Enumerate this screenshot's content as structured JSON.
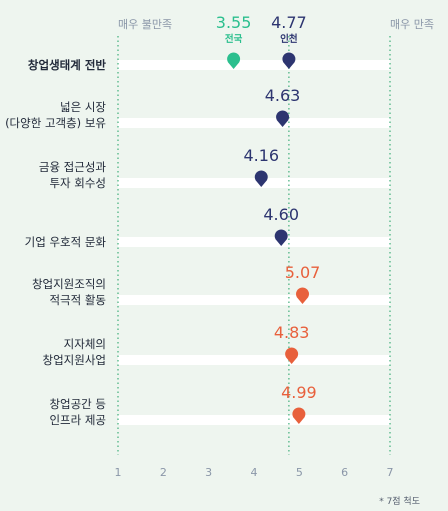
{
  "chart_data": {
    "type": "dot",
    "scale_min_label": "매우 불만족",
    "scale_max_label": "매우 만족",
    "xlim": [
      1,
      7
    ],
    "ticks": [
      1,
      2,
      3,
      4,
      5,
      6,
      7
    ],
    "reference_lines": [
      {
        "label": "전국",
        "value": 3.55,
        "color": "#2bbf8e"
      },
      {
        "label": "인천",
        "value": 4.77,
        "color": "#2d3570"
      }
    ],
    "categories": [
      {
        "label": [
          "창업생태계 전반"
        ],
        "value": 4.77,
        "color": "#2d3570",
        "bold": true,
        "show_value": false
      },
      {
        "label": [
          "넓은 시장",
          "(다양한 고객층) 보유"
        ],
        "value": 4.63,
        "color": "#2d3570"
      },
      {
        "label": [
          "금융 접근성과",
          "투자 회수성"
        ],
        "value": 4.16,
        "color": "#2d3570"
      },
      {
        "label": [
          "기업 우호적 문화"
        ],
        "value": 4.6,
        "color": "#2d3570"
      },
      {
        "label": [
          "창업지원조직의",
          "적극적 활동"
        ],
        "value": 5.07,
        "color": "#e8603c"
      },
      {
        "label": [
          "지자체의",
          "창업지원사업"
        ],
        "value": 4.83,
        "color": "#e8603c"
      },
      {
        "label": [
          "창업공간 등",
          "인프라 제공"
        ],
        "value": 4.99,
        "color": "#e8603c"
      }
    ],
    "first_row_markers": [
      {
        "value": 3.55,
        "color": "#2bbf8e"
      },
      {
        "value": 4.77,
        "color": "#2d3570"
      }
    ],
    "footnote": "* 7점 척도"
  }
}
